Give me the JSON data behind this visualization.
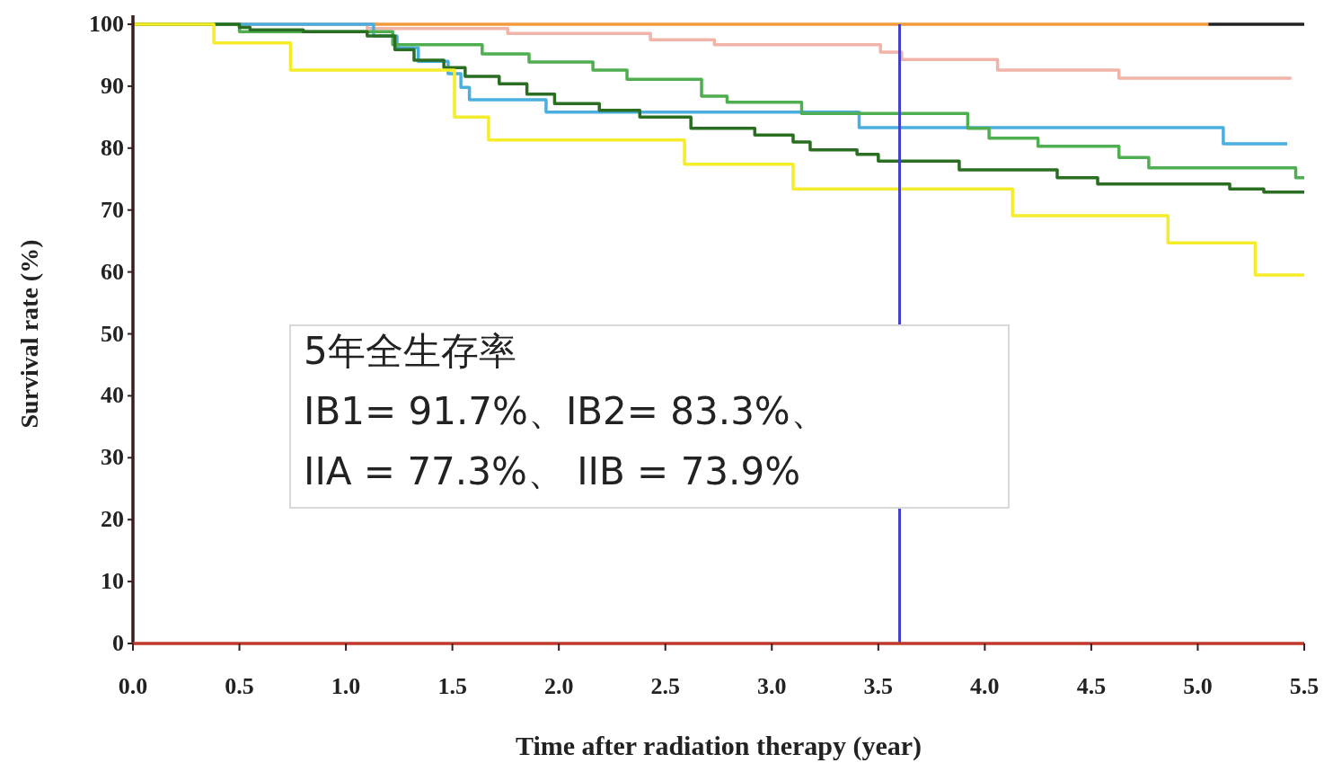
{
  "chart_data": {
    "type": "step",
    "xlabel": "Time after radiation therapy (year)",
    "ylabel": "Survival rate (%)",
    "xlim": [
      0,
      5.5
    ],
    "ylim": [
      0,
      100
    ],
    "xticks": [
      {
        "value": 0,
        "label": "0.0"
      },
      {
        "value": 0.5,
        "label": "0.5"
      },
      {
        "value": 1,
        "label": "1.0"
      },
      {
        "value": 1.5,
        "label": "1.5"
      },
      {
        "value": 2,
        "label": "2.0"
      },
      {
        "value": 2.5,
        "label": "2.5"
      },
      {
        "value": 3,
        "label": "3.0"
      },
      {
        "value": 3.5,
        "label": "3.5"
      },
      {
        "value": 4,
        "label": "4.0"
      },
      {
        "value": 4.5,
        "label": "4.5"
      },
      {
        "value": 5,
        "label": "5.0"
      },
      {
        "value": 5.5,
        "label": "5.5"
      }
    ],
    "yticks": [
      0,
      10,
      20,
      30,
      40,
      50,
      60,
      70,
      80,
      90,
      100
    ],
    "series": [
      {
        "color": "#f39a3c",
        "x": [
          0,
          5.05
        ],
        "values": [
          100,
          100
        ]
      },
      {
        "color": "#222222",
        "x": [
          5.05,
          5.5
        ],
        "values": [
          100,
          100
        ]
      },
      {
        "color": "#f2b3a8",
        "x": [
          0,
          1.1,
          1.76,
          2.43,
          2.73,
          3.51,
          3.61,
          4.06,
          4.63,
          5.44
        ],
        "values": [
          100,
          99.3,
          98.5,
          97.5,
          96.7,
          95.5,
          94.3,
          92.6,
          91.3,
          91.3
        ]
      },
      {
        "color": "#4aaee0",
        "x": [
          0,
          1.13,
          1.24,
          1.34,
          1.48,
          1.54,
          1.58,
          1.94,
          3.41,
          5.12,
          5.42
        ],
        "values": [
          100,
          98.1,
          96.2,
          94,
          92,
          89.8,
          87.8,
          85.8,
          83.3,
          80.7,
          80.7
        ]
      },
      {
        "color": "#4fae4f",
        "x": [
          0,
          0.5,
          1.22,
          1.64,
          1.86,
          2.16,
          2.32,
          2.67,
          2.79,
          3.14,
          3.92,
          4.02,
          4.25,
          4.63,
          4.77,
          5.46,
          5.5
        ],
        "values": [
          100,
          98.8,
          96.7,
          95.2,
          93.9,
          92.6,
          91.1,
          88.4,
          87.4,
          85.6,
          83.2,
          81.6,
          80.3,
          78.5,
          76.8,
          75.2,
          75.2
        ]
      },
      {
        "color": "#2a6e22",
        "x": [
          0,
          0.5,
          0.55,
          0.8,
          1.1,
          1.23,
          1.32,
          1.46,
          1.56,
          1.72,
          1.85,
          1.98,
          2.19,
          2.38,
          2.62,
          2.92,
          3.1,
          3.18,
          3.4,
          3.5,
          3.88,
          4.34,
          4.53,
          5.15,
          5.31,
          5.5
        ],
        "values": [
          100,
          99.5,
          99.1,
          98.8,
          98.1,
          95.9,
          94.2,
          93,
          91.6,
          90.4,
          88.7,
          87.2,
          86.1,
          85,
          83.2,
          82.1,
          81,
          79.7,
          79,
          77.9,
          76.5,
          75.2,
          74.2,
          73.4,
          72.9,
          72.9
        ]
      },
      {
        "color": "#f5ec2a",
        "x": [
          0,
          0.38,
          0.74,
          1.51,
          1.67,
          2.59,
          3.1,
          4.13,
          4.86,
          5.27,
          5.5
        ],
        "values": [
          100,
          97,
          92.6,
          85,
          81.3,
          77.4,
          73.4,
          69.1,
          64.7,
          59.5,
          59.5
        ]
      }
    ],
    "ref_lines": [
      {
        "axis": "x",
        "value": 3.6,
        "color": "#4040c8"
      }
    ],
    "annotations": [
      "5年全生存率",
      "IB1= 91.7%、IB2= 83.3%、",
      "IIA = 77.3%、 IIB = 73.9%"
    ]
  }
}
